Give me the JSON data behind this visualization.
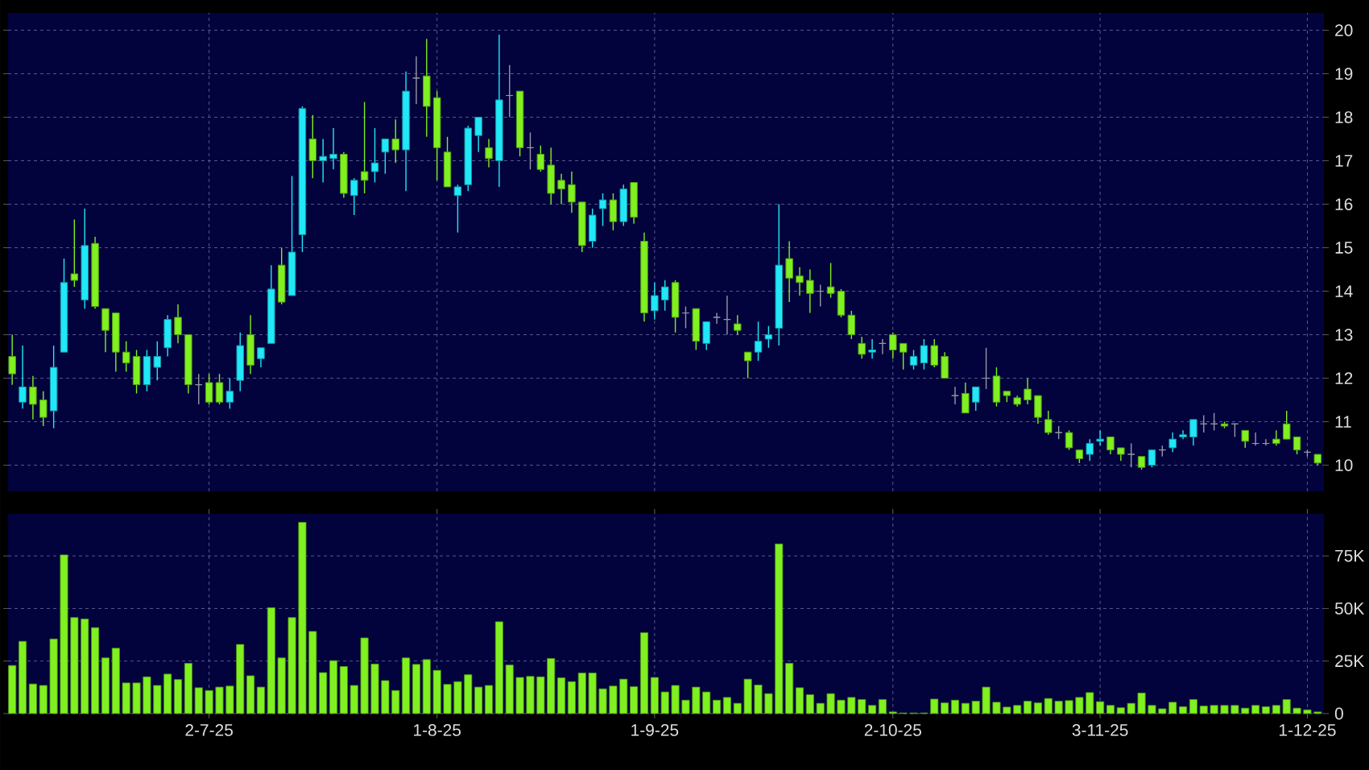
{
  "chart_data": [
    {
      "type": "candlestick",
      "grid": true,
      "tick_labels": "y",
      "categories": [
        null,
        null,
        null,
        null,
        null,
        null,
        null,
        null,
        null,
        null,
        null,
        null,
        null,
        null,
        null,
        null,
        null,
        null,
        null,
        null,
        null,
        null,
        null,
        null,
        null,
        null,
        null,
        null,
        null,
        null,
        null,
        null,
        null,
        null,
        null,
        null,
        null,
        null,
        null,
        null,
        null,
        null,
        null,
        null,
        null,
        null,
        null,
        null,
        null,
        null,
        null,
        null,
        null,
        null,
        null,
        null,
        null,
        null,
        null,
        null,
        null,
        null,
        null,
        null,
        null,
        null,
        null,
        null,
        null,
        null,
        null,
        null,
        null,
        null,
        null,
        null,
        null,
        null,
        null,
        null,
        null,
        null,
        null,
        null,
        null,
        null,
        null,
        null,
        null,
        null,
        null,
        null,
        null,
        null,
        null,
        null,
        null,
        null,
        null,
        null,
        null,
        null,
        null,
        null,
        null,
        null,
        null,
        null,
        null,
        null,
        null,
        null,
        null,
        null,
        null,
        null,
        null,
        null,
        null,
        null,
        null,
        null,
        null,
        null,
        null,
        null,
        null
      ],
      "ylim": [
        9.4,
        20.4
      ],
      "yticks": [
        10,
        11,
        12,
        13,
        14,
        15,
        16,
        17,
        18,
        19,
        20
      ],
      "ohlc": [
        [
          12.5,
          13.0,
          11.85,
          12.1
        ],
        [
          11.45,
          12.75,
          11.3,
          11.8
        ],
        [
          11.8,
          12.05,
          11.05,
          11.4
        ],
        [
          11.5,
          11.7,
          10.9,
          11.1
        ],
        [
          11.25,
          12.75,
          10.85,
          12.25
        ],
        [
          12.6,
          14.75,
          12.6,
          14.2
        ],
        [
          14.4,
          15.65,
          14.1,
          14.25
        ],
        [
          13.8,
          15.9,
          13.6,
          15.05
        ],
        [
          15.1,
          15.25,
          13.6,
          13.65
        ],
        [
          13.6,
          13.6,
          12.6,
          13.1
        ],
        [
          13.5,
          13.5,
          12.15,
          12.6
        ],
        [
          12.6,
          12.85,
          12.15,
          12.35
        ],
        [
          12.5,
          12.65,
          11.65,
          11.85
        ],
        [
          11.85,
          12.65,
          11.7,
          12.5
        ],
        [
          12.25,
          12.85,
          11.95,
          12.5
        ],
        [
          12.7,
          13.45,
          12.5,
          13.35
        ],
        [
          13.4,
          13.7,
          12.8,
          13.0
        ],
        [
          13.0,
          13.0,
          11.65,
          11.85
        ],
        [
          11.85,
          12.1,
          11.4,
          11.85
        ],
        [
          11.9,
          12.1,
          11.4,
          11.45
        ],
        [
          11.9,
          12.1,
          11.4,
          11.45
        ],
        [
          11.45,
          12.0,
          11.3,
          11.7
        ],
        [
          11.95,
          13.05,
          11.7,
          12.75
        ],
        [
          13.0,
          13.45,
          12.1,
          12.3
        ],
        [
          12.45,
          12.7,
          12.25,
          12.7
        ],
        [
          12.8,
          14.6,
          12.8,
          14.05
        ],
        [
          14.6,
          15.0,
          13.7,
          13.75
        ],
        [
          13.9,
          16.65,
          13.9,
          14.9
        ],
        [
          15.3,
          18.25,
          14.9,
          18.2
        ],
        [
          17.5,
          18.05,
          16.6,
          17.0
        ],
        [
          17.0,
          17.5,
          16.5,
          17.1
        ],
        [
          17.05,
          17.75,
          16.8,
          17.15
        ],
        [
          17.15,
          17.2,
          16.15,
          16.25
        ],
        [
          16.2,
          16.6,
          15.75,
          16.55
        ],
        [
          16.75,
          18.35,
          16.25,
          16.55
        ],
        [
          16.75,
          17.75,
          16.5,
          16.95
        ],
        [
          17.2,
          17.5,
          16.7,
          17.5
        ],
        [
          17.5,
          17.95,
          16.95,
          17.25
        ],
        [
          17.25,
          19.05,
          16.3,
          18.6
        ],
        [
          18.9,
          19.4,
          18.3,
          18.9
        ],
        [
          18.95,
          19.8,
          17.55,
          18.25
        ],
        [
          18.45,
          18.6,
          16.55,
          17.3
        ],
        [
          17.2,
          17.55,
          16.4,
          16.4
        ],
        [
          16.2,
          16.45,
          15.35,
          16.4
        ],
        [
          16.45,
          17.8,
          16.3,
          17.75
        ],
        [
          17.58,
          18.0,
          17.2,
          18.0
        ],
        [
          17.3,
          17.5,
          16.85,
          17.05
        ],
        [
          17.0,
          19.9,
          16.4,
          18.4
        ],
        [
          18.5,
          19.2,
          18.0,
          18.5
        ],
        [
          18.6,
          18.6,
          17.1,
          17.3
        ],
        [
          17.3,
          17.65,
          16.8,
          17.3
        ],
        [
          17.15,
          17.35,
          16.75,
          16.8
        ],
        [
          16.9,
          17.3,
          16.0,
          16.25
        ],
        [
          16.55,
          16.7,
          16.0,
          16.35
        ],
        [
          16.45,
          16.75,
          15.8,
          16.05
        ],
        [
          16.05,
          16.05,
          14.9,
          15.05
        ],
        [
          15.15,
          15.9,
          15.0,
          15.75
        ],
        [
          15.9,
          16.25,
          15.5,
          16.1
        ],
        [
          16.1,
          16.25,
          15.4,
          15.6
        ],
        [
          15.6,
          16.45,
          15.5,
          16.35
        ],
        [
          16.5,
          16.5,
          15.55,
          15.7
        ],
        [
          15.15,
          15.35,
          13.3,
          13.5
        ],
        [
          13.55,
          14.2,
          13.35,
          13.9
        ],
        [
          13.8,
          14.25,
          13.55,
          14.1
        ],
        [
          14.2,
          14.25,
          13.05,
          13.4
        ],
        [
          13.5,
          13.65,
          13.15,
          13.5
        ],
        [
          13.6,
          13.6,
          12.65,
          12.85
        ],
        [
          12.8,
          13.3,
          12.65,
          13.3
        ],
        [
          13.4,
          13.5,
          13.25,
          13.4
        ],
        [
          13.35,
          13.9,
          13.0,
          13.35
        ],
        [
          13.25,
          13.45,
          13.0,
          13.1
        ],
        [
          12.6,
          12.6,
          12.0,
          12.4
        ],
        [
          12.6,
          13.3,
          12.4,
          12.85
        ],
        [
          12.9,
          13.2,
          12.7,
          13.0
        ],
        [
          13.15,
          16.0,
          12.75,
          14.6
        ],
        [
          14.75,
          15.15,
          13.75,
          14.3
        ],
        [
          14.35,
          14.55,
          13.9,
          14.2
        ],
        [
          14.25,
          14.5,
          13.5,
          13.95
        ],
        [
          14.0,
          14.15,
          13.65,
          14.0
        ],
        [
          14.1,
          14.65,
          13.85,
          13.95
        ],
        [
          14.0,
          14.05,
          13.4,
          13.45
        ],
        [
          13.45,
          13.55,
          12.9,
          13.0
        ],
        [
          12.8,
          12.95,
          12.45,
          12.55
        ],
        [
          12.6,
          12.9,
          12.45,
          12.65
        ],
        [
          12.8,
          12.9,
          12.55,
          12.8
        ],
        [
          13.0,
          13.05,
          12.45,
          12.65
        ],
        [
          12.8,
          12.8,
          12.2,
          12.6
        ],
        [
          12.3,
          12.65,
          12.2,
          12.5
        ],
        [
          12.35,
          12.9,
          12.2,
          12.75
        ],
        [
          12.75,
          12.9,
          12.25,
          12.3
        ],
        [
          12.5,
          12.6,
          12.0,
          12.0
        ],
        [
          11.6,
          11.8,
          11.4,
          11.6
        ],
        [
          11.65,
          11.9,
          11.2,
          11.2
        ],
        [
          11.45,
          11.8,
          11.25,
          11.8
        ],
        [
          12.0,
          12.7,
          11.75,
          12.0
        ],
        [
          12.05,
          12.25,
          11.35,
          11.45
        ],
        [
          11.7,
          11.7,
          11.45,
          11.6
        ],
        [
          11.55,
          11.6,
          11.35,
          11.4
        ],
        [
          11.75,
          12.0,
          11.4,
          11.5
        ],
        [
          11.6,
          11.6,
          10.95,
          11.1
        ],
        [
          11.05,
          11.25,
          10.7,
          10.75
        ],
        [
          10.75,
          10.9,
          10.6,
          10.75
        ],
        [
          10.75,
          10.8,
          10.35,
          10.4
        ],
        [
          10.35,
          10.35,
          10.05,
          10.15
        ],
        [
          10.25,
          10.6,
          10.1,
          10.5
        ],
        [
          10.55,
          10.8,
          10.45,
          10.6
        ],
        [
          10.65,
          10.65,
          10.25,
          10.35
        ],
        [
          10.4,
          10.4,
          10.1,
          10.25
        ],
        [
          10.25,
          10.5,
          9.95,
          10.25
        ],
        [
          10.2,
          10.2,
          9.9,
          9.95
        ],
        [
          10.0,
          10.35,
          9.95,
          10.35
        ],
        [
          10.35,
          10.45,
          10.2,
          10.35
        ],
        [
          10.4,
          10.75,
          10.3,
          10.6
        ],
        [
          10.65,
          10.8,
          10.6,
          10.7
        ],
        [
          10.65,
          11.05,
          10.45,
          11.05
        ],
        [
          10.95,
          11.15,
          10.75,
          10.95
        ],
        [
          10.95,
          11.2,
          10.8,
          10.95
        ],
        [
          10.95,
          11.0,
          10.85,
          10.9
        ],
        [
          10.95,
          10.95,
          10.65,
          10.95
        ],
        [
          10.8,
          10.8,
          10.4,
          10.55
        ],
        [
          10.5,
          10.75,
          10.45,
          10.5
        ],
        [
          10.5,
          10.6,
          10.45,
          10.5
        ],
        [
          10.6,
          10.8,
          10.45,
          10.5
        ],
        [
          10.95,
          11.25,
          10.6,
          10.6
        ],
        [
          10.65,
          10.65,
          10.25,
          10.35
        ],
        [
          10.3,
          10.35,
          10.2,
          10.3
        ],
        [
          10.25,
          10.25,
          10.0,
          10.05
        ]
      ],
      "colors": [
        "#80f020",
        "#20e8f8",
        "#80f020",
        "#80f020",
        "#20e8f8",
        "#20e8f8",
        "#80f020",
        "#20e8f8",
        "#80f020",
        "#80f020",
        "#80f020",
        "#80f020",
        "#80f020",
        "#20e8f8",
        "#20e8f8",
        "#20e8f8",
        "#80f020",
        "#80f020",
        "#9898a8",
        "#80f020",
        "#80f020",
        "#20e8f8",
        "#20e8f8",
        "#80f020",
        "#20e8f8",
        "#20e8f8",
        "#80f020",
        "#20e8f8",
        "#20e8f8",
        "#80f020",
        "#20e8f8",
        "#20e8f8",
        "#80f020",
        "#20e8f8",
        "#80f020",
        "#20e8f8",
        "#20e8f8",
        "#80f020",
        "#20e8f8",
        "#9898a8",
        "#80f020",
        "#80f020",
        "#80f020",
        "#20e8f8",
        "#20e8f8",
        "#20e8f8",
        "#80f020",
        "#20e8f8",
        "#9898a8",
        "#80f020",
        "#9898a8",
        "#80f020",
        "#80f020",
        "#80f020",
        "#80f020",
        "#80f020",
        "#20e8f8",
        "#20e8f8",
        "#80f020",
        "#20e8f8",
        "#80f020",
        "#80f020",
        "#20e8f8",
        "#20e8f8",
        "#80f020",
        "#9898a8",
        "#80f020",
        "#20e8f8",
        "#9898a8",
        "#9898a8",
        "#80f020",
        "#80f020",
        "#20e8f8",
        "#20e8f8",
        "#20e8f8",
        "#80f020",
        "#80f020",
        "#80f020",
        "#9898a8",
        "#80f020",
        "#80f020",
        "#80f020",
        "#80f020",
        "#20e8f8",
        "#9898a8",
        "#80f020",
        "#80f020",
        "#20e8f8",
        "#20e8f8",
        "#80f020",
        "#80f020",
        "#9898a8",
        "#80f020",
        "#20e8f8",
        "#9898a8",
        "#80f020",
        "#80f020",
        "#80f020",
        "#80f020",
        "#80f020",
        "#80f020",
        "#9898a8",
        "#80f020",
        "#80f020",
        "#20e8f8",
        "#20e8f8",
        "#80f020",
        "#80f020",
        "#9898a8",
        "#80f020",
        "#20e8f8",
        "#9898a8",
        "#20e8f8",
        "#20e8f8",
        "#20e8f8",
        "#9898a8",
        "#9898a8",
        "#80f020",
        "#9898a8",
        "#80f020",
        "#9898a8",
        "#9898a8",
        "#80f020",
        "#80f020",
        "#80f020",
        "#9898a8",
        "#80f020"
      ]
    },
    {
      "type": "bar",
      "grid": true,
      "color": "#80f020",
      "categories": [
        null,
        null,
        null,
        null,
        null,
        null,
        null,
        null,
        null,
        null,
        null,
        null,
        null,
        null,
        null,
        null,
        null,
        null,
        null,
        "2-7-25",
        null,
        null,
        null,
        null,
        null,
        null,
        null,
        null,
        null,
        null,
        null,
        null,
        null,
        null,
        null,
        null,
        null,
        null,
        null,
        null,
        null,
        "1-8-25",
        null,
        null,
        null,
        null,
        null,
        null,
        null,
        null,
        null,
        null,
        null,
        null,
        null,
        null,
        null,
        null,
        null,
        null,
        null,
        null,
        "1-9-25",
        null,
        null,
        null,
        null,
        null,
        null,
        null,
        null,
        null,
        null,
        null,
        null,
        null,
        null,
        null,
        null,
        null,
        null,
        null,
        null,
        null,
        null,
        "2-10-25",
        null,
        null,
        null,
        null,
        null,
        null,
        null,
        null,
        null,
        null,
        null,
        null,
        null,
        null,
        null,
        null,
        null,
        null,
        null,
        "3-11-25",
        null,
        null,
        null,
        null,
        null,
        null,
        null,
        null,
        null,
        null,
        null,
        null,
        null,
        null,
        null,
        null,
        null,
        null,
        null,
        "1-12-25",
        null
      ],
      "ylim": [
        0,
        95000
      ],
      "yticks": [
        {
          "value": 0,
          "label": "0"
        },
        {
          "value": 25000,
          "label": "25K"
        },
        {
          "value": 50000,
          "label": "50K"
        },
        {
          "value": 75000,
          "label": "75K"
        }
      ],
      "values": [
        22900,
        34400,
        14100,
        13400,
        35500,
        75500,
        45700,
        45000,
        40900,
        26500,
        31100,
        14600,
        14600,
        17500,
        13400,
        18800,
        16200,
        23900,
        12300,
        11000,
        12600,
        13100,
        32900,
        18000,
        12600,
        50400,
        26500,
        45700,
        91000,
        39100,
        19500,
        25200,
        22400,
        13400,
        36000,
        23600,
        15700,
        11000,
        26500,
        23400,
        25700,
        20600,
        13900,
        15200,
        18500,
        12600,
        13400,
        43700,
        23100,
        17200,
        17700,
        17500,
        26200,
        17000,
        15200,
        19300,
        19300,
        11800,
        13100,
        16400,
        12800,
        38500,
        17200,
        10300,
        13400,
        6400,
        12600,
        10300,
        6400,
        7700,
        4900,
        16400,
        13600,
        9500,
        80700,
        23900,
        12300,
        9000,
        4900,
        9500,
        6400,
        7700,
        6700,
        3900,
        6700,
        800,
        300,
        300,
        300,
        6900,
        5100,
        6400,
        4900,
        5900,
        12600,
        5400,
        3100,
        3900,
        5900,
        5100,
        7200,
        5900,
        6200,
        7700,
        10000,
        5700,
        3900,
        2800,
        4900,
        9800,
        3900,
        2300,
        5400,
        3300,
        6700,
        3600,
        3900,
        3900,
        3900,
        2600,
        3900,
        3300,
        3900,
        6700,
        2600,
        1800,
        800
      ]
    }
  ]
}
